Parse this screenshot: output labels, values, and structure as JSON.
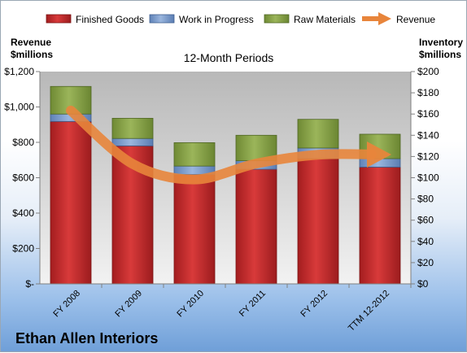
{
  "chart_data": {
    "type": "bar",
    "stacked": true,
    "title": "12-Month Periods",
    "company": "Ethan Allen Interiors",
    "categories": [
      "FY 2008",
      "FY 2009",
      "FY 2010",
      "FY 2011",
      "FY 2012",
      "TTM 12-2012"
    ],
    "left_axis": {
      "label_line1": "Revenue",
      "label_line2": "$millions",
      "ylim": [
        0,
        1200
      ],
      "ticks": [
        0,
        200,
        400,
        600,
        800,
        1000,
        1200
      ],
      "tick_labels": [
        "$-",
        "$200",
        "$400",
        "$600",
        "$800",
        "$1,000",
        "$1,200"
      ]
    },
    "right_axis": {
      "label_line1": "Inventory",
      "label_line2": "$millions",
      "ylim": [
        0,
        200
      ],
      "ticks": [
        0,
        20,
        40,
        60,
        80,
        100,
        120,
        140,
        160,
        180,
        200
      ],
      "tick_labels": [
        "$0",
        "$20",
        "$40",
        "$60",
        "$80",
        "$100",
        "$120",
        "$140",
        "$160",
        "$180",
        "$200"
      ]
    },
    "series": [
      {
        "name": "Finished Goods",
        "axis": "right",
        "color": "#c0282a",
        "values": [
          153,
          130,
          103,
          108,
          118,
          110
        ]
      },
      {
        "name": "Work in Progress",
        "axis": "right",
        "color": "#7a9ccc",
        "values": [
          7,
          7,
          8,
          8,
          10,
          8
        ]
      },
      {
        "name": "Raw Materials",
        "axis": "right",
        "color": "#8aa048",
        "values": [
          26,
          19,
          22,
          24,
          27,
          23
        ]
      },
      {
        "name": "Revenue",
        "axis": "left",
        "type": "line",
        "color": "#e8853b",
        "values": [
          980,
          678,
          590,
          680,
          730,
          731
        ]
      }
    ],
    "grid": false,
    "legend_position": "top"
  }
}
